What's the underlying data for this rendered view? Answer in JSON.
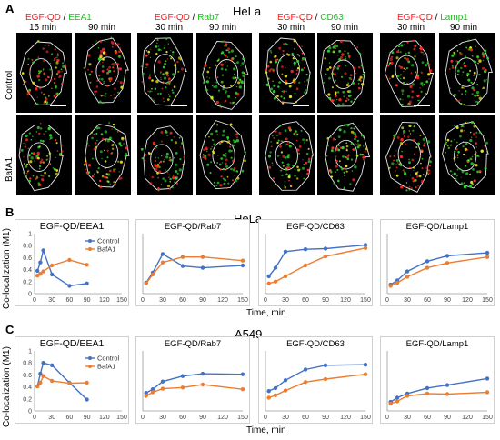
{
  "panelA": {
    "letter": "A",
    "cellline": "HeLa",
    "groups": [
      {
        "title_red": "EGF-QD",
        "slash": " / ",
        "title_green": "EEA1",
        "times": [
          "15 min",
          "90 min"
        ]
      },
      {
        "title_red": "EGF-QD",
        "slash": " / ",
        "title_green": "Rab7",
        "times": [
          "30 min",
          "90 min"
        ]
      },
      {
        "title_red": "EGF-QD",
        "slash": " / ",
        "title_green": "CD63",
        "times": [
          "30 min",
          "90 min"
        ]
      },
      {
        "title_red": "EGF-QD",
        "slash": " / ",
        "title_green": "Lamp1",
        "times": [
          "30 min",
          "90 min"
        ]
      }
    ],
    "rows": [
      "Control",
      "BafA1"
    ]
  },
  "panelB": {
    "letter": "B",
    "cellline": "HeLa"
  },
  "panelC": {
    "letter": "C",
    "cellline": "A549"
  },
  "ylabel": "Co-localization (M1)",
  "xlabel": "Time, min",
  "colors": {
    "control": "#4472c4",
    "bafa1": "#ed7d31"
  },
  "chart_data": [
    {
      "type": "line",
      "panel": "B",
      "title": "EGF-QD/EEA1",
      "ylim": [
        0,
        1
      ],
      "yticks": [
        0,
        0.2,
        0.4,
        0.6,
        0.8,
        1
      ],
      "xlim": [
        0,
        150
      ],
      "xticks": [
        0,
        30,
        60,
        90,
        120,
        150
      ],
      "legend": [
        "Control",
        "BafA1"
      ],
      "series": [
        {
          "name": "Control",
          "x": [
            5,
            10,
            15,
            30,
            60,
            90
          ],
          "y": [
            0.38,
            0.52,
            0.72,
            0.32,
            0.13,
            0.17
          ]
        },
        {
          "name": "BafA1",
          "x": [
            5,
            10,
            15,
            30,
            60,
            90
          ],
          "y": [
            0.3,
            0.33,
            0.37,
            0.47,
            0.56,
            0.48
          ]
        }
      ]
    },
    {
      "type": "line",
      "panel": "B",
      "title": "EGF-QD/Rab7",
      "ylim": [
        0,
        1
      ],
      "xlim": [
        0,
        150
      ],
      "xticks": [
        0,
        30,
        60,
        90,
        120,
        150
      ],
      "series": [
        {
          "x": [
            5,
            15,
            30,
            60,
            90,
            150
          ],
          "y": [
            0.18,
            0.35,
            0.66,
            0.46,
            0.43,
            0.47
          ]
        },
        {
          "x": [
            5,
            15,
            30,
            60,
            90,
            150
          ],
          "y": [
            0.17,
            0.32,
            0.52,
            0.61,
            0.61,
            0.55
          ]
        }
      ]
    },
    {
      "type": "line",
      "panel": "B",
      "title": "EGF-QD/CD63",
      "ylim": [
        0,
        1
      ],
      "xlim": [
        0,
        150
      ],
      "xticks": [
        0,
        30,
        60,
        90,
        120,
        150
      ],
      "series": [
        {
          "x": [
            5,
            15,
            30,
            60,
            90,
            150
          ],
          "y": [
            0.29,
            0.43,
            0.7,
            0.74,
            0.75,
            0.81
          ]
        },
        {
          "x": [
            5,
            15,
            30,
            60,
            90,
            150
          ],
          "y": [
            0.17,
            0.2,
            0.29,
            0.47,
            0.62,
            0.76
          ]
        }
      ]
    },
    {
      "type": "line",
      "panel": "B",
      "title": "EGF-QD/Lamp1",
      "ylim": [
        0,
        1
      ],
      "xlim": [
        0,
        150
      ],
      "xticks": [
        0,
        30,
        60,
        90,
        120,
        150
      ],
      "series": [
        {
          "x": [
            5,
            15,
            30,
            60,
            90,
            150
          ],
          "y": [
            0.15,
            0.22,
            0.37,
            0.54,
            0.63,
            0.68
          ]
        },
        {
          "x": [
            5,
            15,
            30,
            60,
            90,
            150
          ],
          "y": [
            0.13,
            0.18,
            0.28,
            0.43,
            0.51,
            0.61
          ]
        }
      ]
    },
    {
      "type": "line",
      "panel": "C",
      "title": "EGF-QD/EEA1",
      "ylim": [
        0,
        1
      ],
      "yticks": [
        0,
        0.2,
        0.4,
        0.6,
        0.8,
        1
      ],
      "xlim": [
        0,
        150
      ],
      "xticks": [
        0,
        30,
        60,
        90,
        120,
        150
      ],
      "legend": [
        "Control",
        "BafA1"
      ],
      "series": [
        {
          "name": "Control",
          "x": [
            5,
            10,
            15,
            30,
            60,
            90
          ],
          "y": [
            0.41,
            0.62,
            0.8,
            0.76,
            0.47,
            0.19
          ]
        },
        {
          "name": "BafA1",
          "x": [
            5,
            10,
            15,
            30,
            60,
            90
          ],
          "y": [
            0.41,
            0.47,
            0.58,
            0.5,
            0.46,
            0.47
          ]
        }
      ]
    },
    {
      "type": "line",
      "panel": "C",
      "title": "EGF-QD/Rab7",
      "ylim": [
        0,
        1
      ],
      "xlim": [
        0,
        150
      ],
      "xticks": [
        0,
        30,
        60,
        90,
        120,
        150
      ],
      "series": [
        {
          "x": [
            5,
            15,
            30,
            60,
            90,
            150
          ],
          "y": [
            0.3,
            0.36,
            0.49,
            0.58,
            0.62,
            0.61
          ]
        },
        {
          "x": [
            5,
            15,
            30,
            60,
            90,
            150
          ],
          "y": [
            0.25,
            0.31,
            0.37,
            0.39,
            0.44,
            0.36
          ]
        }
      ]
    },
    {
      "type": "line",
      "panel": "C",
      "title": "EGF-QD/CD63",
      "ylim": [
        0,
        1
      ],
      "xlim": [
        0,
        150
      ],
      "xticks": [
        0,
        30,
        60,
        90,
        120,
        150
      ],
      "series": [
        {
          "x": [
            5,
            15,
            30,
            60,
            90,
            150
          ],
          "y": [
            0.33,
            0.38,
            0.51,
            0.69,
            0.76,
            0.77
          ]
        },
        {
          "x": [
            5,
            15,
            30,
            60,
            90,
            150
          ],
          "y": [
            0.22,
            0.26,
            0.34,
            0.48,
            0.53,
            0.61
          ]
        }
      ]
    },
    {
      "type": "line",
      "panel": "C",
      "title": "EGF-QD/Lamp1",
      "ylim": [
        0,
        1
      ],
      "xlim": [
        0,
        150
      ],
      "xticks": [
        0,
        30,
        60,
        90,
        120,
        150
      ],
      "series": [
        {
          "x": [
            5,
            15,
            30,
            60,
            90,
            150
          ],
          "y": [
            0.15,
            0.22,
            0.29,
            0.38,
            0.43,
            0.54
          ]
        },
        {
          "x": [
            5,
            15,
            30,
            60,
            90,
            150
          ],
          "y": [
            0.12,
            0.16,
            0.25,
            0.29,
            0.28,
            0.31
          ]
        }
      ]
    }
  ]
}
